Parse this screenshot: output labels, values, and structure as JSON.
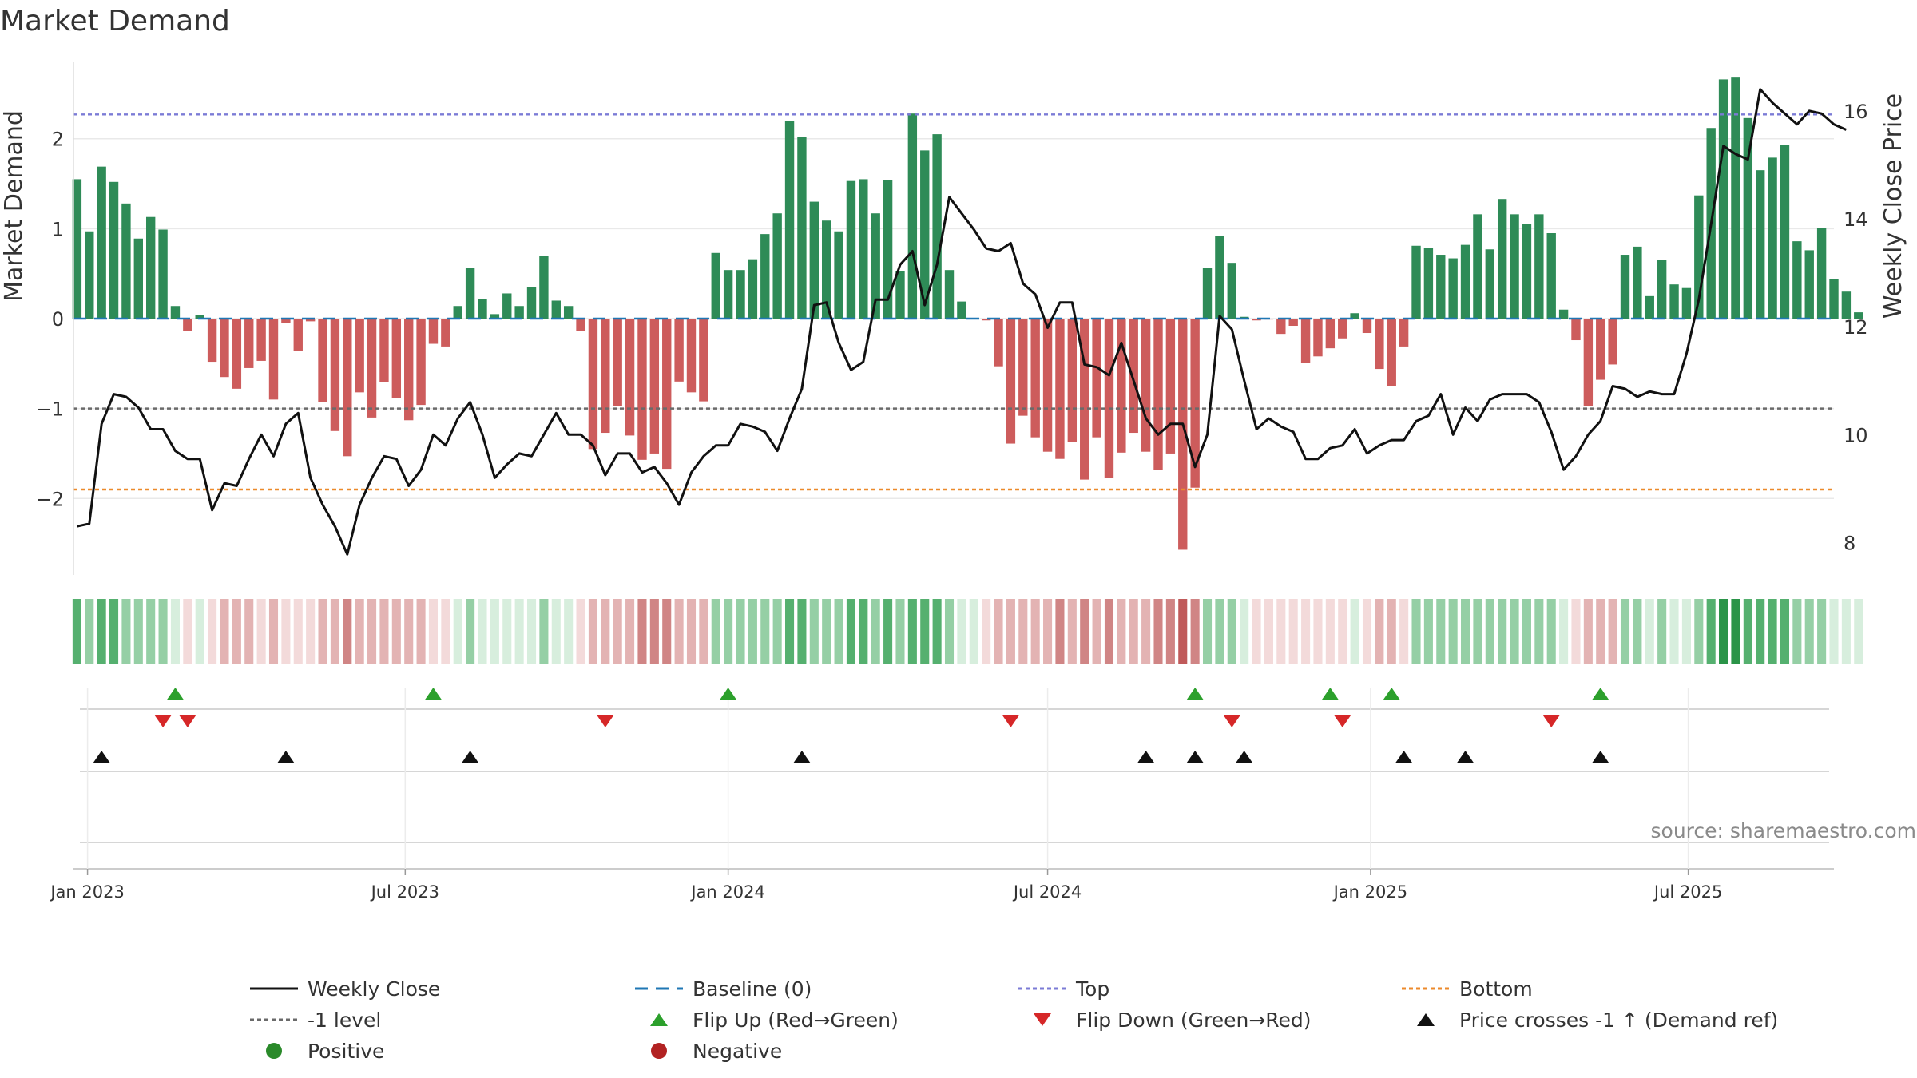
{
  "chart_data": {
    "type": "bar",
    "title": "Market Demand",
    "ylabel_left": "Market Demand",
    "ylabel_right": "Weekly Close Price",
    "ylim_left": [
      -2.85,
      2.85
    ],
    "ylim_right": [
      7.4,
      16.9
    ],
    "yticks_left": [
      2,
      1,
      0,
      -1,
      -2
    ],
    "ytick_labels_left": [
      "2",
      "1",
      "0",
      "−1",
      "−2"
    ],
    "yticks_right": [
      16,
      14,
      12,
      10,
      8
    ],
    "ytick_labels_right": [
      "16",
      "14",
      "12",
      "10",
      "8"
    ],
    "x_start": "2022-12-24",
    "x_end": "2025-09-22",
    "x_ticks": [
      {
        "date": "2023-01-01",
        "label": "Jan 2023"
      },
      {
        "date": "2023-07-01",
        "label": "Jul 2023"
      },
      {
        "date": "2024-01-01",
        "label": "Jan 2024"
      },
      {
        "date": "2024-07-01",
        "label": "Jul 2024"
      },
      {
        "date": "2025-01-01",
        "label": "Jan 2025"
      },
      {
        "date": "2025-07-01",
        "label": "Jul 2025"
      }
    ],
    "first_week": "2022-12-26",
    "week_days": 7,
    "demand": [
      1.55,
      0.97,
      1.69,
      1.52,
      1.28,
      0.89,
      1.13,
      0.99,
      0.14,
      -0.14,
      0.04,
      -0.48,
      -0.65,
      -0.78,
      -0.55,
      -0.47,
      -0.9,
      -0.05,
      -0.36,
      -0.03,
      -0.93,
      -1.25,
      -1.53,
      -0.82,
      -1.1,
      -0.71,
      -0.88,
      -1.13,
      -0.96,
      -0.28,
      -0.31,
      0.14,
      0.56,
      0.22,
      0.05,
      0.28,
      0.14,
      0.35,
      0.7,
      0.2,
      0.14,
      -0.14,
      -1.45,
      -1.27,
      -0.97,
      -1.3,
      -1.57,
      -1.5,
      -1.67,
      -0.7,
      -0.82,
      -0.92,
      0.73,
      0.54,
      0.54,
      0.66,
      0.94,
      1.17,
      2.2,
      2.02,
      1.3,
      1.09,
      0.97,
      1.53,
      1.55,
      1.17,
      1.54,
      0.53,
      2.28,
      1.87,
      2.05,
      0.54,
      0.19,
      0,
      -0.02,
      -0.53,
      -1.39,
      -1.08,
      -1.32,
      -1.48,
      -1.56,
      -1.37,
      -1.79,
      -1.32,
      -1.77,
      -1.49,
      -1.27,
      -1.48,
      -1.68,
      -1.5,
      -2.57,
      -1.88,
      0.56,
      0.92,
      0.62,
      0.02,
      -0.02,
      -0.01,
      -0.17,
      -0.08,
      -0.49,
      -0.42,
      -0.33,
      -0.22,
      0.06,
      -0.16,
      -0.56,
      -0.75,
      -0.31,
      0.81,
      0.79,
      0.71,
      0.67,
      0.82,
      1.16,
      0.77,
      1.33,
      1.16,
      1.05,
      1.16,
      0.95,
      0.1,
      -0.24,
      -0.97,
      -0.68,
      -0.51,
      0.71,
      0.8,
      0.25,
      0.65,
      0.38,
      0.34,
      1.37,
      2.12,
      2.66,
      2.68,
      2.23,
      1.65,
      1.79,
      1.93,
      0.86,
      0.76,
      1.01,
      0.44,
      0.3,
      0.07
    ],
    "price": [
      8.3,
      8.35,
      10.2,
      10.75,
      10.7,
      10.5,
      10.1,
      10.1,
      9.7,
      9.55,
      9.55,
      8.6,
      9.1,
      9.05,
      9.55,
      10.0,
      9.6,
      10.2,
      10.4,
      9.2,
      8.7,
      8.3,
      7.78,
      8.7,
      9.2,
      9.6,
      9.55,
      9.05,
      9.35,
      10.0,
      9.8,
      10.3,
      10.6,
      10.0,
      9.2,
      9.45,
      9.65,
      9.6,
      10.0,
      10.4,
      10.0,
      10.0,
      9.8,
      9.25,
      9.65,
      9.65,
      9.3,
      9.4,
      9.1,
      8.7,
      9.3,
      9.6,
      9.8,
      9.8,
      10.2,
      10.15,
      10.05,
      9.7,
      10.3,
      10.85,
      12.4,
      12.45,
      11.7,
      11.2,
      11.35,
      12.5,
      12.5,
      13.15,
      13.4,
      12.4,
      13.15,
      14.4,
      14.1,
      13.8,
      13.45,
      13.4,
      13.55,
      12.8,
      12.6,
      11.98,
      12.45,
      12.45,
      11.3,
      11.25,
      11.1,
      11.7,
      11.0,
      10.3,
      10.0,
      10.2,
      10.2,
      9.4,
      10.0,
      12.2,
      11.95,
      11.0,
      10.1,
      10.3,
      10.15,
      10.05,
      9.55,
      9.55,
      9.75,
      9.8,
      10.1,
      9.65,
      9.8,
      9.9,
      9.9,
      10.25,
      10.35,
      10.75,
      10.0,
      10.5,
      10.25,
      10.65,
      10.75,
      10.75,
      10.75,
      10.6,
      10.05,
      9.35,
      9.6,
      10.0,
      10.25,
      10.9,
      10.85,
      10.7,
      10.8,
      10.75,
      10.75,
      11.5,
      12.5,
      13.9,
      15.35,
      15.2,
      15.1,
      16.4,
      16.15,
      15.95,
      15.75,
      16.0,
      15.95,
      15.75,
      15.65
    ],
    "flip_up_dates": [
      "2023-02-20",
      "2023-07-17",
      "2024-01-01",
      "2024-09-23",
      "2024-12-09",
      "2025-01-13",
      "2025-05-12"
    ],
    "flip_down_dates": [
      "2023-02-13",
      "2023-02-27",
      "2023-10-23",
      "2024-06-10",
      "2024-10-14",
      "2024-12-16",
      "2025-04-14"
    ],
    "price_cross_dates": [
      "2023-01-09",
      "2023-04-24",
      "2023-08-07",
      "2024-02-12",
      "2024-08-26",
      "2024-09-23",
      "2024-10-21",
      "2025-01-20",
      "2025-02-24",
      "2025-05-12"
    ],
    "reference_lines": [
      {
        "name": "Baseline (0)",
        "value": 0,
        "color": "#1f77b4"
      },
      {
        "name": "Top",
        "value": 2.27,
        "color": "#7b7bd6"
      },
      {
        "name": "-1 level",
        "value": -1,
        "color": "#6a6a6a"
      },
      {
        "name": "Bottom",
        "value": -1.9,
        "color": "#ec8a2b"
      }
    ],
    "legend": [
      {
        "label": "Weekly Close",
        "symbol": "line",
        "color": "#111111"
      },
      {
        "label": "Baseline (0)",
        "symbol": "dash",
        "color": "#1f77b4"
      },
      {
        "label": "Top",
        "symbol": "dot",
        "color": "#7b7bd6"
      },
      {
        "label": "Bottom",
        "symbol": "dot",
        "color": "#ec8a2b"
      },
      {
        "label": "-1 level",
        "symbol": "dot",
        "color": "#6a6a6a"
      },
      {
        "label": "Flip Up (Red→Green)",
        "symbol": "tri-up",
        "color": "#2ca02c"
      },
      {
        "label": "Flip Down (Green→Red)",
        "symbol": "tri-down",
        "color": "#d62728"
      },
      {
        "label": "Price crosses -1 ↑ (Demand ref)",
        "symbol": "tri-up",
        "color": "#111111"
      },
      {
        "label": "Positive",
        "symbol": "circle",
        "color": "#2a8a2a"
      },
      {
        "label": "Negative",
        "symbol": "circle",
        "color": "#b22222"
      }
    ],
    "legend_placement": "bottom",
    "source": "source: sharemaestro.com"
  },
  "colors": {
    "positive_bar": "#2e8b57",
    "negative_bar": "#cd5c5c",
    "price_line": "#111111"
  }
}
